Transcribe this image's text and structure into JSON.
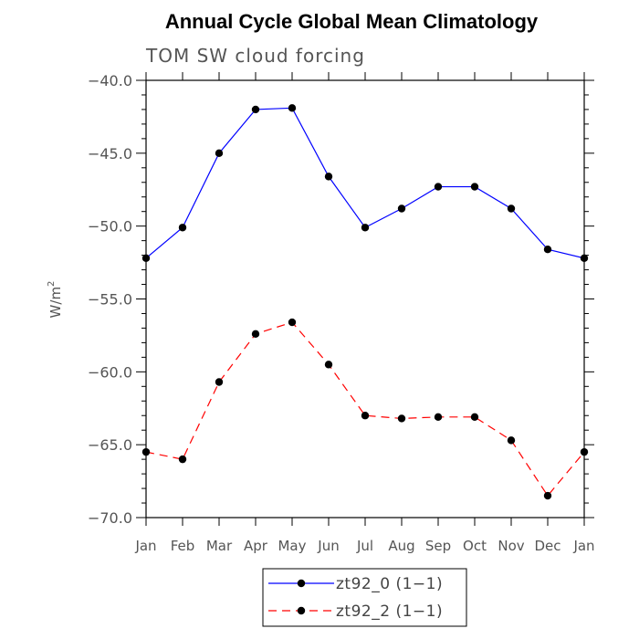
{
  "chart_data": {
    "type": "line",
    "title": "Annual Cycle Global Mean Climatology",
    "subtitle": "TOM SW cloud forcing",
    "xlabel": "",
    "ylabel_base": "W/m",
    "ylabel_exp": "2",
    "categories": [
      "Jan",
      "Feb",
      "Mar",
      "Apr",
      "May",
      "Jun",
      "Jul",
      "Aug",
      "Sep",
      "Oct",
      "Nov",
      "Dec",
      "Jan"
    ],
    "ylim": [
      -70.0,
      -40.0
    ],
    "yticks": [
      -70.0,
      -65.0,
      -60.0,
      -55.0,
      -50.0,
      -45.0,
      -40.0
    ],
    "ytick_labels": [
      "−70.0",
      "−65.0",
      "−60.0",
      "−55.0",
      "−50.0",
      "−45.0",
      "−40.0"
    ],
    "series": [
      {
        "name": "zt92_0 (1−1)",
        "color": "#0000ff",
        "dash": "solid",
        "values": [
          -52.2,
          -50.1,
          -45.0,
          -42.0,
          -41.9,
          -46.6,
          -50.1,
          -48.8,
          -47.3,
          -47.3,
          -48.8,
          -51.6,
          -52.2
        ]
      },
      {
        "name": "zt92_2 (1−1)",
        "color": "#ff0000",
        "dash": "dashed",
        "values": [
          -65.5,
          -66.0,
          -60.7,
          -57.4,
          -56.6,
          -59.5,
          -63.0,
          -63.2,
          -63.1,
          -63.1,
          -64.7,
          -68.5,
          -65.5
        ]
      }
    ],
    "legend_position": "bottom-center"
  }
}
